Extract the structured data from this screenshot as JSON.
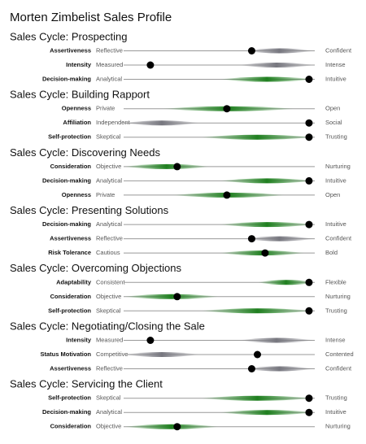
{
  "title": "Morten Zimbelist Sales Profile",
  "colors": {
    "green": "#1f7f1f",
    "gray": "#77777f"
  },
  "sections": [
    {
      "title": "Sales Cycle: Prospecting",
      "rows": [
        {
          "trait": "Assertiveness",
          "left": "Reflective",
          "right": "Confident",
          "value": 67,
          "band": [
            63,
            100
          ],
          "color": "gray"
        },
        {
          "trait": "Intensity",
          "left": "Measured",
          "right": "Intense",
          "value": 14,
          "band": [
            60,
            100
          ],
          "color": "gray"
        },
        {
          "trait": "Decision-making",
          "left": "Analytical",
          "right": "Intuitive",
          "value": 97,
          "band": [
            50,
            100
          ],
          "color": "green"
        }
      ]
    },
    {
      "title": "Sales Cycle: Building Rapport",
      "rows": [
        {
          "trait": "Openness",
          "left": "Private",
          "right": "Open",
          "value": 54,
          "band": [
            20,
            90
          ],
          "color": "green"
        },
        {
          "trait": "Affiliation",
          "left": "Independent",
          "right": "Social",
          "value": 97,
          "band": [
            0,
            40
          ],
          "color": "gray"
        },
        {
          "trait": "Self-protection",
          "left": "Skeptical",
          "right": "Trusting",
          "value": 97,
          "band": [
            40,
            100
          ],
          "color": "green"
        }
      ]
    },
    {
      "title": "Sales Cycle: Discovering Needs",
      "rows": [
        {
          "trait": "Consideration",
          "left": "Objective",
          "right": "Nurturing",
          "value": 28,
          "band": [
            0,
            45
          ],
          "color": "green"
        },
        {
          "trait": "Decision-making",
          "left": "Analytical",
          "right": "Intuitive",
          "value": 97,
          "band": [
            50,
            100
          ],
          "color": "green"
        },
        {
          "trait": "Openness",
          "left": "Private",
          "right": "Open",
          "value": 54,
          "band": [
            25,
            85
          ],
          "color": "green"
        }
      ]
    },
    {
      "title": "Sales Cycle: Presenting Solutions",
      "rows": [
        {
          "trait": "Decision-making",
          "left": "Analytical",
          "right": "Intuitive",
          "value": 97,
          "band": [
            50,
            100
          ],
          "color": "green"
        },
        {
          "trait": "Assertiveness",
          "left": "Reflective",
          "right": "Confident",
          "value": 67,
          "band": [
            63,
            100
          ],
          "color": "gray"
        },
        {
          "trait": "Risk Tolerance",
          "left": "Cautious",
          "right": "Bold",
          "value": 74,
          "band": [
            50,
            95
          ],
          "color": "green"
        }
      ]
    },
    {
      "title": "Sales Cycle: Overcoming Objections",
      "rows": [
        {
          "trait": "Adaptability",
          "left": "Consistent",
          "right": "Flexible",
          "value": 97,
          "band": [
            70,
            100
          ],
          "color": "green"
        },
        {
          "trait": "Consideration",
          "left": "Objective",
          "right": "Nurturing",
          "value": 28,
          "band": [
            0,
            50
          ],
          "color": "green"
        },
        {
          "trait": "Self-protection",
          "left": "Skeptical",
          "right": "Trusting",
          "value": 97,
          "band": [
            40,
            100
          ],
          "color": "green"
        }
      ]
    },
    {
      "title": "Sales Cycle: Negotiating/Closing the Sale",
      "rows": [
        {
          "trait": "Intensity",
          "left": "Measured",
          "right": "Intense",
          "value": 14,
          "band": [
            60,
            100
          ],
          "color": "gray"
        },
        {
          "trait": "Status Motivation",
          "left": "Competitive",
          "right": "Contented",
          "value": 70,
          "band": [
            0,
            40
          ],
          "color": "gray"
        },
        {
          "trait": "Assertiveness",
          "left": "Reflective",
          "right": "Confident",
          "value": 67,
          "band": [
            63,
            100
          ],
          "color": "gray"
        }
      ]
    },
    {
      "title": "Sales Cycle: Servicing the Client",
      "rows": [
        {
          "trait": "Self-protection",
          "left": "Skeptical",
          "right": "Trusting",
          "value": 97,
          "band": [
            40,
            100
          ],
          "color": "green"
        },
        {
          "trait": "Decision-making",
          "left": "Analytical",
          "right": "Intuitive",
          "value": 97,
          "band": [
            50,
            100
          ],
          "color": "green"
        },
        {
          "trait": "Consideration",
          "left": "Objective",
          "right": "Nurturing",
          "value": 28,
          "band": [
            0,
            50
          ],
          "color": "green"
        }
      ]
    }
  ]
}
